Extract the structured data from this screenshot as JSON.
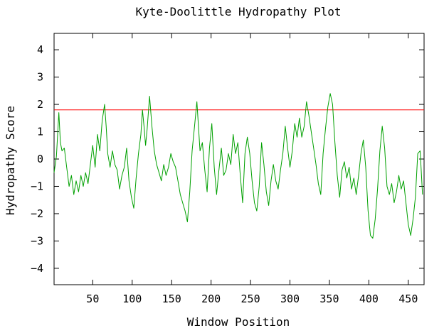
{
  "chart_data": {
    "type": "line",
    "title": "Kyte-Doolittle Hydropathy Plot",
    "xlabel": "Window Position",
    "ylabel": "Hydropathy Score",
    "xlim": [
      1,
      470
    ],
    "ylim": [
      -4.6,
      4.6
    ],
    "xticks": [
      50,
      100,
      150,
      200,
      250,
      300,
      350,
      400,
      450
    ],
    "yticks": [
      -4,
      -3,
      -2,
      -1,
      0,
      1,
      2,
      3,
      4
    ],
    "threshold": {
      "value": 1.8,
      "color": "#ff0000"
    },
    "series": [
      {
        "color": "#00a000",
        "points": [
          [
            1,
            -0.5
          ],
          [
            4,
            0.1
          ],
          [
            7,
            1.7
          ],
          [
            9,
            0.6
          ],
          [
            11,
            0.3
          ],
          [
            14,
            0.4
          ],
          [
            17,
            -0.3
          ],
          [
            20,
            -1.0
          ],
          [
            23,
            -0.6
          ],
          [
            26,
            -1.3
          ],
          [
            29,
            -0.8
          ],
          [
            32,
            -1.2
          ],
          [
            35,
            -0.6
          ],
          [
            38,
            -1.0
          ],
          [
            41,
            -0.5
          ],
          [
            44,
            -0.9
          ],
          [
            47,
            -0.2
          ],
          [
            50,
            0.5
          ],
          [
            53,
            -0.3
          ],
          [
            56,
            0.9
          ],
          [
            59,
            0.3
          ],
          [
            62,
            1.4
          ],
          [
            65,
            2.0
          ],
          [
            67,
            1.2
          ],
          [
            69,
            0.2
          ],
          [
            72,
            -0.3
          ],
          [
            75,
            0.3
          ],
          [
            78,
            -0.2
          ],
          [
            81,
            -0.4
          ],
          [
            84,
            -1.1
          ],
          [
            87,
            -0.6
          ],
          [
            90,
            -0.3
          ],
          [
            93,
            0.4
          ],
          [
            96,
            -0.8
          ],
          [
            99,
            -1.4
          ],
          [
            102,
            -1.8
          ],
          [
            105,
            -0.7
          ],
          [
            108,
            0.2
          ],
          [
            111,
            0.9
          ],
          [
            113,
            1.8
          ],
          [
            115,
            1.2
          ],
          [
            117,
            0.5
          ],
          [
            119,
            1.1
          ],
          [
            122,
            2.3
          ],
          [
            125,
            1.2
          ],
          [
            128,
            0.3
          ],
          [
            131,
            -0.2
          ],
          [
            134,
            -0.5
          ],
          [
            137,
            -0.8
          ],
          [
            140,
            -0.2
          ],
          [
            143,
            -0.6
          ],
          [
            146,
            -0.3
          ],
          [
            149,
            0.2
          ],
          [
            152,
            -0.1
          ],
          [
            155,
            -0.3
          ],
          [
            158,
            -0.8
          ],
          [
            161,
            -1.3
          ],
          [
            164,
            -1.6
          ],
          [
            167,
            -1.9
          ],
          [
            170,
            -2.3
          ],
          [
            173,
            -1.2
          ],
          [
            176,
            0.3
          ],
          [
            179,
            1.2
          ],
          [
            182,
            2.1
          ],
          [
            184,
            1.2
          ],
          [
            186,
            0.3
          ],
          [
            189,
            0.6
          ],
          [
            192,
            -0.4
          ],
          [
            195,
            -1.2
          ],
          [
            198,
            0.4
          ],
          [
            201,
            1.3
          ],
          [
            204,
            -0.3
          ],
          [
            207,
            -1.3
          ],
          [
            210,
            -0.4
          ],
          [
            213,
            0.4
          ],
          [
            216,
            -0.6
          ],
          [
            219,
            -0.4
          ],
          [
            222,
            0.2
          ],
          [
            225,
            -0.2
          ],
          [
            228,
            0.9
          ],
          [
            231,
            0.2
          ],
          [
            234,
            0.6
          ],
          [
            237,
            -0.6
          ],
          [
            240,
            -1.6
          ],
          [
            243,
            0.2
          ],
          [
            246,
            0.8
          ],
          [
            249,
            0.2
          ],
          [
            252,
            -0.8
          ],
          [
            255,
            -1.6
          ],
          [
            258,
            -1.9
          ],
          [
            261,
            -1.0
          ],
          [
            264,
            0.6
          ],
          [
            267,
            -0.2
          ],
          [
            270,
            -1.2
          ],
          [
            273,
            -1.7
          ],
          [
            276,
            -0.8
          ],
          [
            279,
            -0.2
          ],
          [
            282,
            -0.8
          ],
          [
            285,
            -1.1
          ],
          [
            288,
            -0.4
          ],
          [
            291,
            0.2
          ],
          [
            294,
            1.2
          ],
          [
            297,
            0.4
          ],
          [
            300,
            -0.3
          ],
          [
            303,
            0.3
          ],
          [
            306,
            1.3
          ],
          [
            309,
            0.8
          ],
          [
            312,
            1.5
          ],
          [
            315,
            0.8
          ],
          [
            318,
            1.2
          ],
          [
            321,
            2.1
          ],
          [
            324,
            1.6
          ],
          [
            327,
            1.0
          ],
          [
            330,
            0.4
          ],
          [
            333,
            -0.2
          ],
          [
            336,
            -0.9
          ],
          [
            339,
            -1.3
          ],
          [
            342,
            0.2
          ],
          [
            345,
            1.1
          ],
          [
            348,
            1.9
          ],
          [
            351,
            2.4
          ],
          [
            354,
            2.0
          ],
          [
            357,
            0.6
          ],
          [
            360,
            -0.6
          ],
          [
            363,
            -1.4
          ],
          [
            366,
            -0.4
          ],
          [
            369,
            -0.1
          ],
          [
            372,
            -0.7
          ],
          [
            375,
            -0.3
          ],
          [
            378,
            -1.1
          ],
          [
            381,
            -0.7
          ],
          [
            384,
            -1.3
          ],
          [
            387,
            -0.6
          ],
          [
            390,
            0.2
          ],
          [
            393,
            0.7
          ],
          [
            396,
            -0.3
          ],
          [
            399,
            -1.9
          ],
          [
            402,
            -2.8
          ],
          [
            405,
            -2.9
          ],
          [
            408,
            -2.2
          ],
          [
            411,
            -1.1
          ],
          [
            414,
            0.3
          ],
          [
            417,
            1.2
          ],
          [
            420,
            0.4
          ],
          [
            423,
            -1.0
          ],
          [
            426,
            -1.3
          ],
          [
            429,
            -0.9
          ],
          [
            432,
            -1.6
          ],
          [
            435,
            -1.2
          ],
          [
            438,
            -0.6
          ],
          [
            441,
            -1.1
          ],
          [
            444,
            -0.8
          ],
          [
            447,
            -1.6
          ],
          [
            450,
            -2.4
          ],
          [
            453,
            -2.8
          ],
          [
            456,
            -2.2
          ],
          [
            459,
            -1.4
          ],
          [
            462,
            0.2
          ],
          [
            465,
            0.3
          ],
          [
            468,
            -1.3
          ]
        ]
      }
    ]
  }
}
